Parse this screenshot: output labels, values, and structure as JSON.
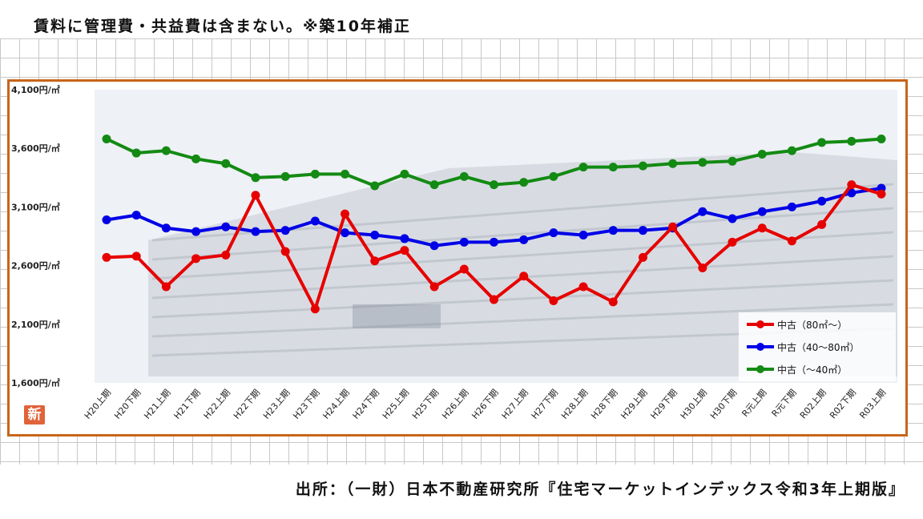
{
  "note": "賃料に管理費・共益費は含まない。※築10年補正",
  "source": "出所：（一財）日本不動産研究所『住宅マーケットインデックス令和3年上期版』",
  "badge": "新",
  "colors": {
    "frame": "#c8651b",
    "red": "#e60000",
    "blue": "#0000e6",
    "green": "#138a13"
  },
  "chart_data": {
    "type": "line",
    "ylim": [
      1600,
      4100
    ],
    "yticks": [
      1600,
      2100,
      2600,
      3100,
      3600,
      4100
    ],
    "ytick_labels": [
      "1,600円/㎡",
      "2,100円/㎡",
      "2,600円/㎡",
      "3,100円/㎡",
      "3,600円/㎡",
      "4,100円/㎡"
    ],
    "categories": [
      "H20上期",
      "H20下期",
      "H21上期",
      "H21下期",
      "H22上期",
      "H22下期",
      "H23上期",
      "H23下期",
      "H24上期",
      "H24下期",
      "H25上期",
      "H25下期",
      "H26上期",
      "H26下期",
      "H27上期",
      "H27下期",
      "H28上期",
      "H28下期",
      "H29上期",
      "H29下期",
      "H30上期",
      "H30下期",
      "R元上期",
      "R元下期",
      "R02上期",
      "R02下期",
      "R03上期"
    ],
    "legend_position": "bottom-right",
    "series": [
      {
        "name": "中古（80㎡～）",
        "color": "#e60000",
        "values": [
          2670,
          2680,
          2420,
          2660,
          2690,
          3200,
          2720,
          2230,
          3040,
          2640,
          2730,
          2420,
          2570,
          2310,
          2510,
          2300,
          2420,
          2290,
          2670,
          2930,
          2580,
          2800,
          2920,
          2810,
          2950,
          3290,
          3210
        ]
      },
      {
        "name": "中古（40～80㎡）",
        "color": "#0000e6",
        "values": [
          2990,
          3030,
          2920,
          2890,
          2930,
          2890,
          2900,
          2980,
          2880,
          2860,
          2830,
          2770,
          2800,
          2800,
          2820,
          2880,
          2860,
          2900,
          2900,
          2920,
          3060,
          3000,
          3060,
          3100,
          3150,
          3220,
          3260
        ]
      },
      {
        "name": "中古（～40㎡）",
        "color": "#138a13",
        "values": [
          3680,
          3560,
          3580,
          3510,
          3470,
          3350,
          3360,
          3380,
          3380,
          3280,
          3380,
          3290,
          3360,
          3290,
          3310,
          3360,
          3440,
          3440,
          3450,
          3470,
          3480,
          3490,
          3550,
          3580,
          3650,
          3660,
          3680
        ]
      }
    ]
  }
}
